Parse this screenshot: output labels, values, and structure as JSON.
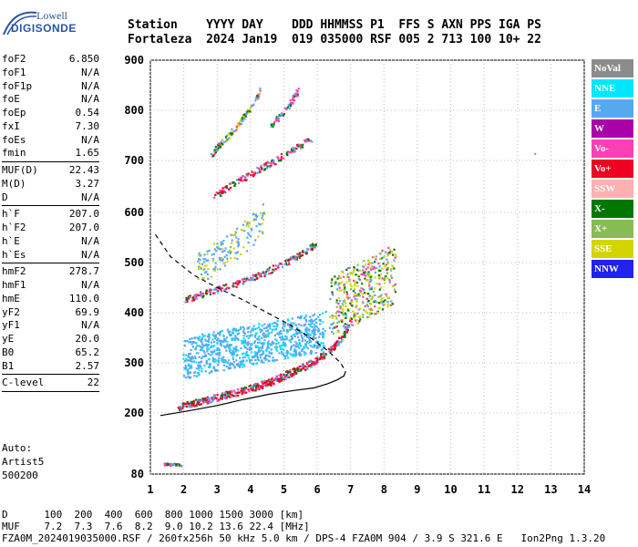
{
  "logo": {
    "line1": "Lowell",
    "line2": "DIGISONDE"
  },
  "header": {
    "row1": "Station    YYYY DAY    DDD HHMMSS P1  FFS S AXN PPS IGA PS",
    "row2": "Fortaleza  2024 Jan19  019 035000 RSF 005 2 713 100 10+ 22"
  },
  "params": {
    "group1": [
      {
        "label": "foF2",
        "value": "6.850"
      },
      {
        "label": "foF1",
        "value": "N/A"
      },
      {
        "label": "foF1p",
        "value": "N/A"
      },
      {
        "label": "foE",
        "value": "N/A"
      },
      {
        "label": "foEp",
        "value": "0.54"
      },
      {
        "label": "fxI",
        "value": "7.30"
      },
      {
        "label": "foEs",
        "value": "N/A"
      },
      {
        "label": "fmin",
        "value": "1.65"
      }
    ],
    "group2": [
      {
        "label": "MUF(D)",
        "value": "22.43"
      },
      {
        "label": "M(D)",
        "value": "3.27"
      },
      {
        "label": "D",
        "value": "N/A"
      }
    ],
    "group3": [
      {
        "label": "h`F",
        "value": "207.0"
      },
      {
        "label": "h`F2",
        "value": "207.0"
      },
      {
        "label": "h`E",
        "value": "N/A"
      },
      {
        "label": "h`Es",
        "value": "N/A"
      }
    ],
    "group4": [
      {
        "label": "hmF2",
        "value": "278.7"
      },
      {
        "label": "hmF1",
        "value": "N/A"
      },
      {
        "label": "hmE",
        "value": "110.0"
      },
      {
        "label": "yF2",
        "value": "69.9"
      },
      {
        "label": "yF1",
        "value": "N/A"
      },
      {
        "label": "yE",
        "value": "20.0"
      },
      {
        "label": "B0",
        "value": "65.2"
      },
      {
        "label": "B1",
        "value": "2.57"
      }
    ],
    "group5": [
      {
        "label": "C-level",
        "value": "22"
      }
    ]
  },
  "auto": {
    "line1": "Auto:",
    "line2": "Artist5",
    "line3": "500200"
  },
  "legend": [
    {
      "label": "NoVal",
      "color": "#8c8c8c"
    },
    {
      "label": "NNE",
      "color": "#00e6ff"
    },
    {
      "label": "E",
      "color": "#55aaee"
    },
    {
      "label": "W",
      "color": "#aa00aa"
    },
    {
      "label": "Vo-",
      "color": "#ff3fb4"
    },
    {
      "label": "Vo+",
      "color": "#ee0022"
    },
    {
      "label": "SSW",
      "color": "#ffb0b0"
    },
    {
      "label": "X-",
      "color": "#007700"
    },
    {
      "label": "X+",
      "color": "#88bb55"
    },
    {
      "label": "SSE",
      "color": "#d4d400"
    },
    {
      "label": "NNW",
      "color": "#2222ee"
    }
  ],
  "footer": {
    "line1": "D      100  200  400  600  800 1000 1500 3000 [km]",
    "line2": "MUF    7.2  7.3  7.6  8.2  9.0 10.2 13.6 22.4 [MHz]",
    "line3": "FZA0M_2024019035000.RSF / 260fx256h 50 kHz 5.0 km / DPS-4 FZA0M 904 / 3.9 S 321.6 E   Ion2Png 1.3.20"
  },
  "chart_data": {
    "type": "scatter",
    "xlim": [
      1,
      14
    ],
    "ylim": [
      80,
      900
    ],
    "xticks": [
      "1",
      "2",
      "3",
      "4",
      "5",
      "6",
      "7",
      "8",
      "9",
      "10",
      "11",
      "12",
      "13",
      "14"
    ],
    "yticks": [
      "80",
      "200",
      "300",
      "400",
      "500",
      "600",
      "700",
      "800",
      "900"
    ],
    "ytick_values": [
      80,
      200,
      300,
      400,
      500,
      600,
      700,
      800,
      900
    ],
    "grid": true,
    "trace_1F2": {
      "x": [
        1.8,
        2.0,
        2.3,
        2.6,
        3.0,
        3.4,
        3.8,
        4.2,
        4.6,
        5.0,
        5.3,
        5.6,
        5.9,
        6.1,
        6.3,
        6.5,
        6.7,
        6.85,
        6.95,
        7.0
      ],
      "y": [
        213,
        216,
        221,
        227,
        233,
        240,
        247,
        255,
        264,
        276,
        285,
        294,
        305,
        313,
        323,
        335,
        350,
        366,
        380,
        395
      ]
    },
    "trace_2F2": {
      "x": [
        2.0,
        2.5,
        3.0,
        3.5,
        4.0,
        4.5,
        5.0,
        5.5,
        5.8,
        6.0
      ],
      "y": [
        428,
        437,
        448,
        458,
        470,
        484,
        500,
        518,
        532,
        543
      ]
    },
    "trace_3F2": {
      "x": [
        2.9,
        3.2,
        3.5,
        3.8,
        4.1,
        4.4,
        4.7,
        5.0,
        5.3,
        5.6,
        5.8
      ],
      "y": [
        633,
        645,
        657,
        668,
        679,
        690,
        700,
        712,
        725,
        737,
        745
      ]
    },
    "trace_4F2": {
      "x": [
        2.8,
        3.0,
        3.2,
        3.5,
        3.8,
        4.1,
        4.3
      ],
      "y": [
        712,
        728,
        742,
        763,
        790,
        818,
        845
      ]
    },
    "trace_5F2": {
      "x": [
        4.6,
        4.8,
        5.0,
        5.2,
        5.4
      ],
      "y": [
        772,
        786,
        800,
        817,
        840
      ]
    },
    "spread_region": {
      "x": [
        2.0,
        2.5,
        3.0,
        3.5,
        4.0,
        4.5,
        5.0,
        5.5,
        6.0,
        6.2
      ],
      "y": [
        310,
        318,
        325,
        331,
        337,
        343,
        350,
        356,
        360,
        365
      ]
    },
    "upper_spread": {
      "x": [
        2.4,
        2.8,
        3.2,
        3.6,
        4.0,
        4.4
      ],
      "y": [
        490,
        505,
        520,
        540,
        565,
        590
      ]
    },
    "oblique_cluster": {
      "x": [
        6.4,
        6.8,
        7.2,
        7.6,
        8.0,
        8.3
      ],
      "y": [
        410,
        430,
        440,
        455,
        470,
        480
      ]
    },
    "low_echoes": {
      "x": [
        1.4,
        1.6,
        1.8,
        1.9
      ],
      "y": [
        101,
        100,
        100,
        99
      ]
    },
    "isolated_point": {
      "x": 12.5,
      "y": 715
    },
    "profile_dashed": {
      "x": [
        1.15,
        1.6,
        2.3,
        3.0,
        3.8,
        4.5,
        5.2,
        5.8,
        6.3,
        6.7,
        6.85
      ],
      "y": [
        556,
        512,
        475,
        450,
        425,
        400,
        375,
        350,
        325,
        300,
        283
      ]
    },
    "profile_solid": {
      "x": [
        1.3,
        2.2,
        3.0,
        3.8,
        4.6,
        5.3,
        5.9,
        6.3,
        6.6,
        6.8,
        6.85
      ],
      "y": [
        195,
        205,
        215,
        227,
        238,
        245,
        250,
        258,
        266,
        274,
        283
      ]
    }
  }
}
